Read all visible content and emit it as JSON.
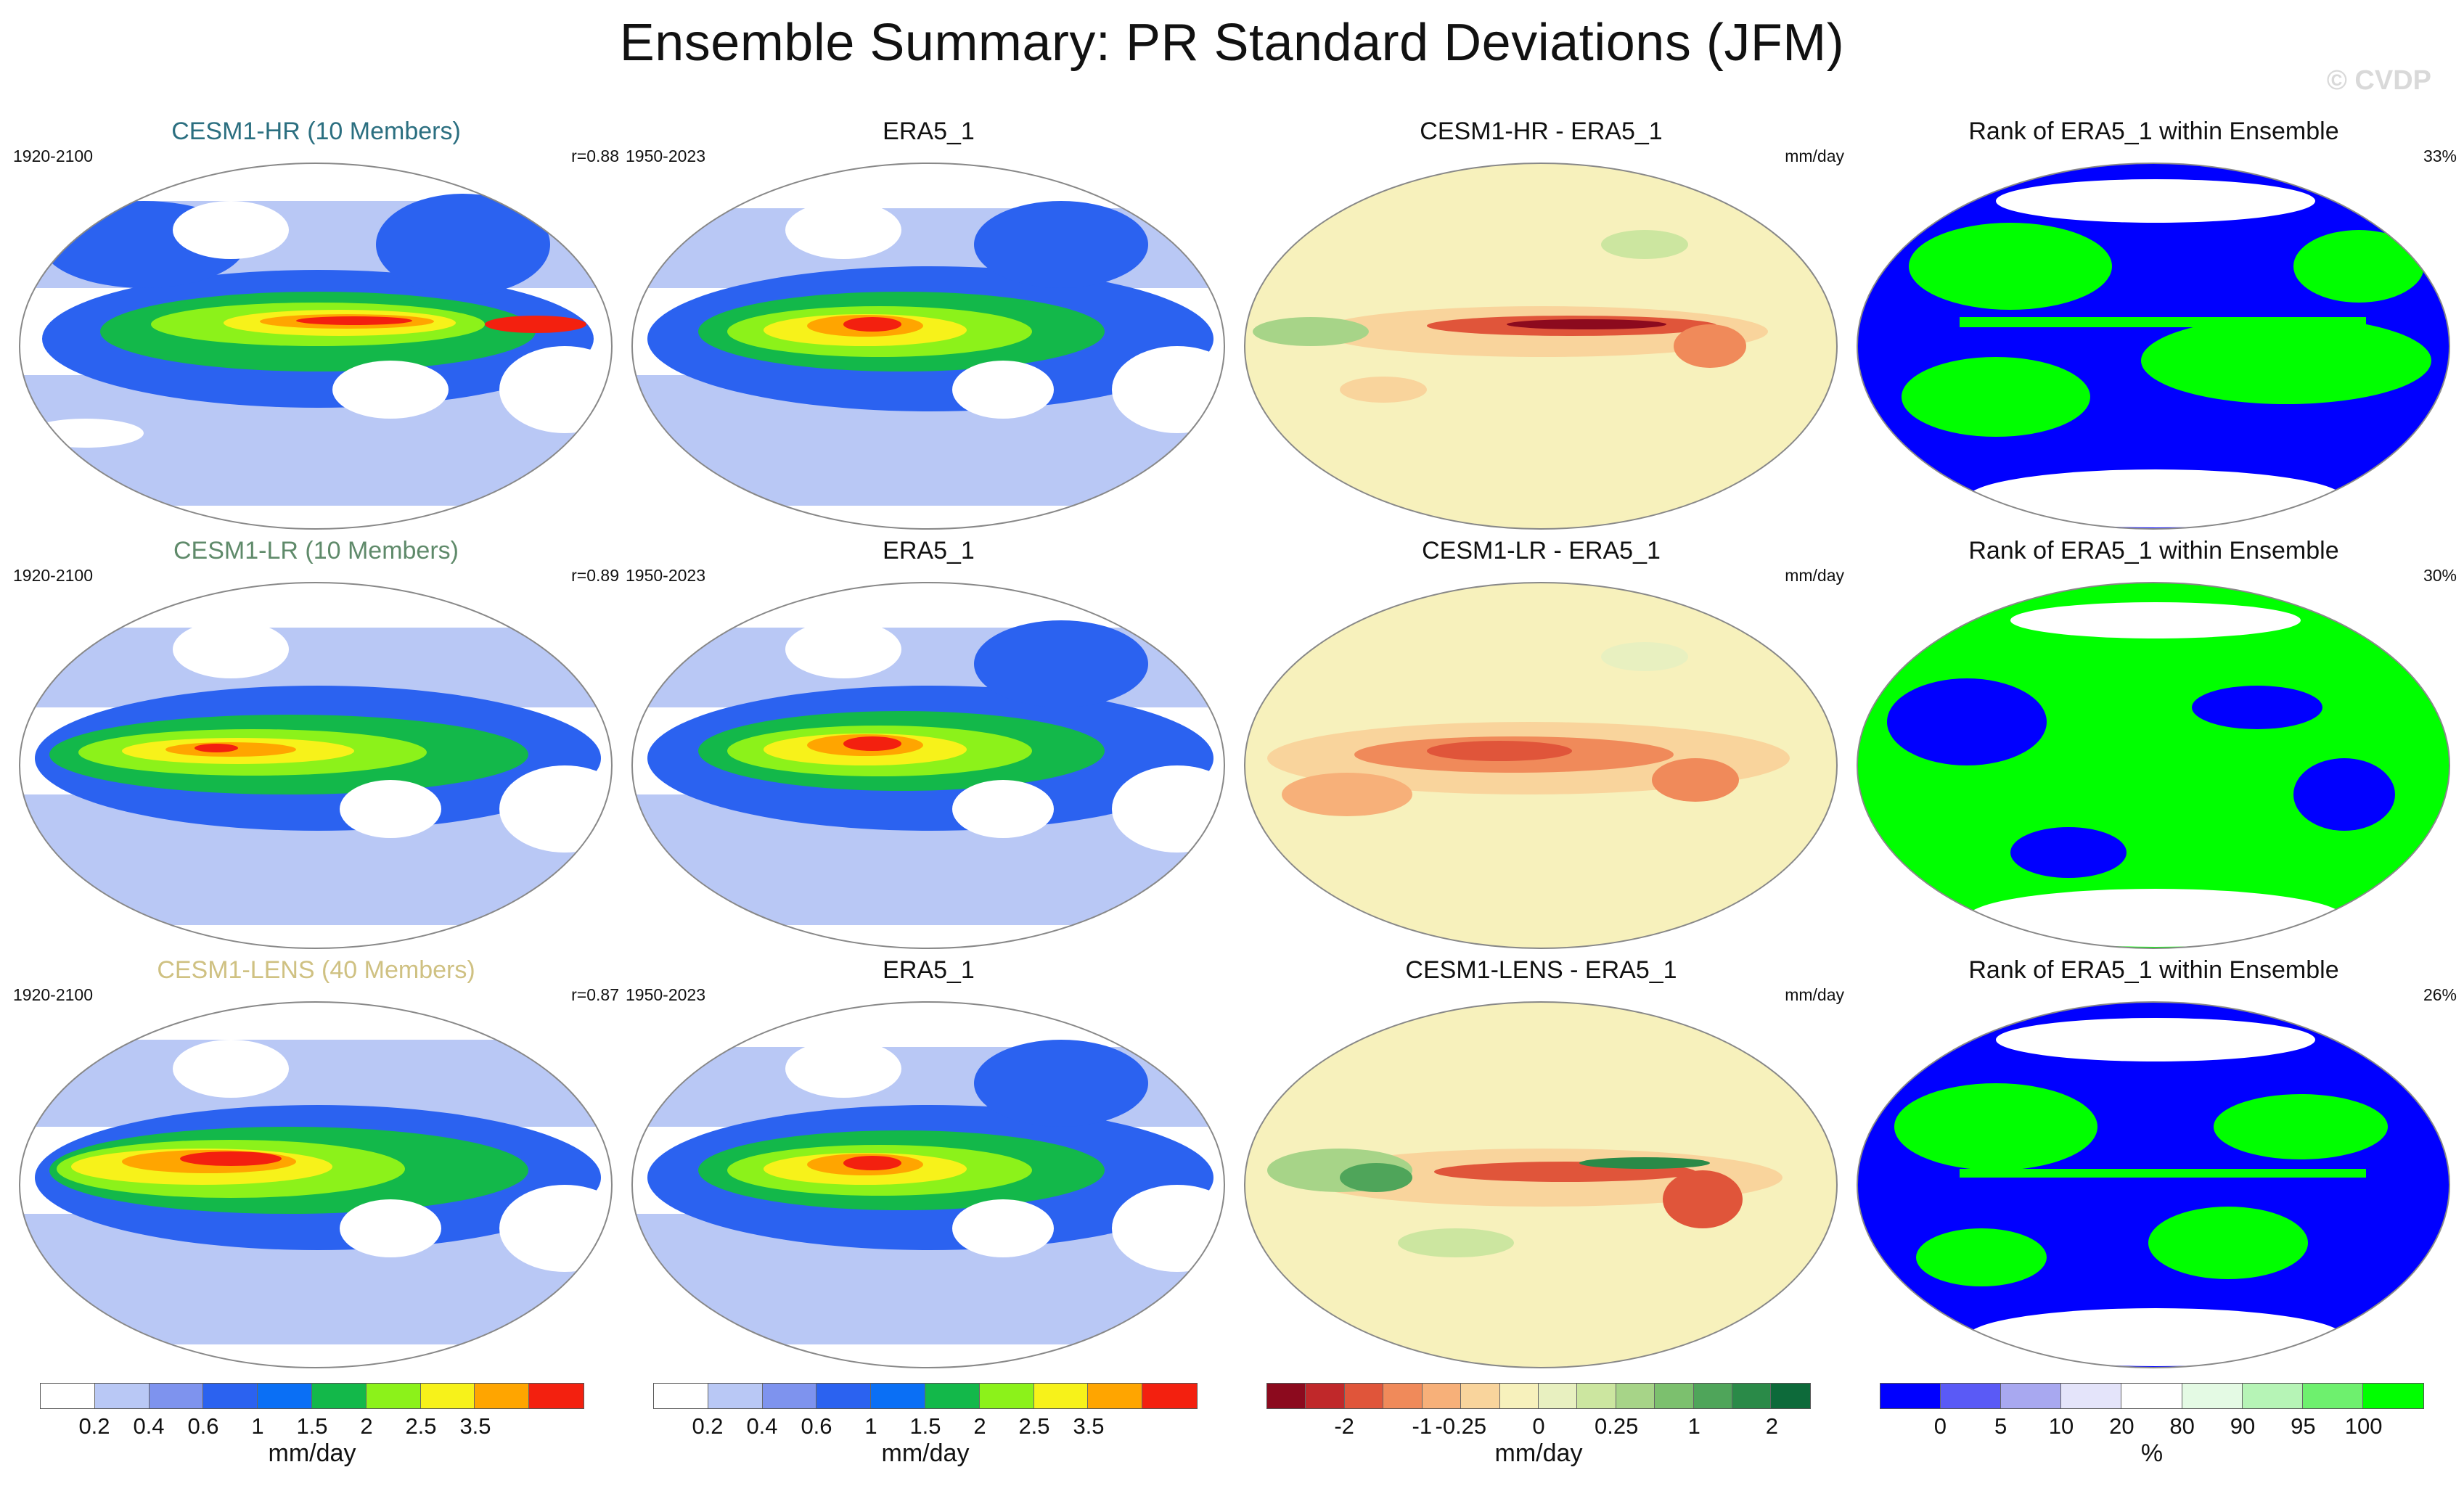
{
  "figure": {
    "title": "Ensemble Summary: PR Standard Deviations (JFM)",
    "watermark": "© CVDP"
  },
  "rows": [
    {
      "model": {
        "title": "CESM1-HR (10 Members)",
        "title_color": "#2b6f80",
        "period": "1920-2100",
        "corr": "r=0.88"
      },
      "obs": {
        "title": "ERA5_1",
        "period": "1950-2023"
      },
      "diff": {
        "title": "CESM1-HR - ERA5_1",
        "unit": "mm/day"
      },
      "rank": {
        "title": "Rank of ERA5_1 within Ensemble",
        "pct": "33%"
      }
    },
    {
      "model": {
        "title": "CESM1-LR (10 Members)",
        "title_color": "#5f8a6a",
        "period": "1920-2100",
        "corr": "r=0.89"
      },
      "obs": {
        "title": "ERA5_1",
        "period": "1950-2023"
      },
      "diff": {
        "title": "CESM1-LR - ERA5_1",
        "unit": "mm/day"
      },
      "rank": {
        "title": "Rank of ERA5_1 within Ensemble",
        "pct": "30%"
      }
    },
    {
      "model": {
        "title": "CESM1-LENS (40 Members)",
        "title_color": "#cfc182",
        "period": "1920-2100",
        "corr": "r=0.87"
      },
      "obs": {
        "title": "ERA5_1",
        "period": "1950-2023"
      },
      "diff": {
        "title": "CESM1-LENS - ERA5_1",
        "unit": "mm/day"
      },
      "rank": {
        "title": "Rank of ERA5_1 within Ensemble",
        "pct": "26%"
      }
    }
  ],
  "colorbars": [
    {
      "id": "model",
      "colors": [
        "#ffffff",
        "#b9c8f5",
        "#7e93ee",
        "#2b62f0",
        "#0a6ff5",
        "#13b84a",
        "#8cf21a",
        "#f7f21a",
        "#ffa500",
        "#f3200f"
      ],
      "tick_labels": [
        "0.2",
        "0.4",
        "0.6",
        "1",
        "1.5",
        "2",
        "2.5",
        "3.5"
      ],
      "unit": "mm/day"
    },
    {
      "id": "obs",
      "colors": [
        "#ffffff",
        "#b9c8f5",
        "#7e93ee",
        "#2b62f0",
        "#0a6ff5",
        "#13b84a",
        "#8cf21a",
        "#f7f21a",
        "#ffa500",
        "#f3200f"
      ],
      "tick_labels": [
        "0.2",
        "0.4",
        "0.6",
        "1",
        "1.5",
        "2",
        "2.5",
        "3.5"
      ],
      "unit": "mm/day"
    },
    {
      "id": "diff",
      "colors": [
        "#8c0a1e",
        "#c0282a",
        "#e0553a",
        "#f08a5a",
        "#f7b079",
        "#f9d49c",
        "#f7f1bc",
        "#e8f0c0",
        "#cce6a0",
        "#a7d488",
        "#7cc06e",
        "#4fa55a",
        "#2a8a48",
        "#0d6a3a"
      ],
      "tick_labels": [
        "-2",
        "-1",
        "-0.25",
        "0",
        "0.25",
        "1",
        "2"
      ],
      "unit": "mm/day"
    },
    {
      "id": "rank",
      "colors": [
        "#0000ff",
        "#5a5af6",
        "#a8a8f0",
        "#e4e4fa",
        "#ffffff",
        "#e4fae4",
        "#b6f4b6",
        "#6ef06e",
        "#00ff00"
      ],
      "tick_labels": [
        "0",
        "5",
        "10",
        "20",
        "80",
        "90",
        "95",
        "100"
      ],
      "unit": "%"
    }
  ]
}
